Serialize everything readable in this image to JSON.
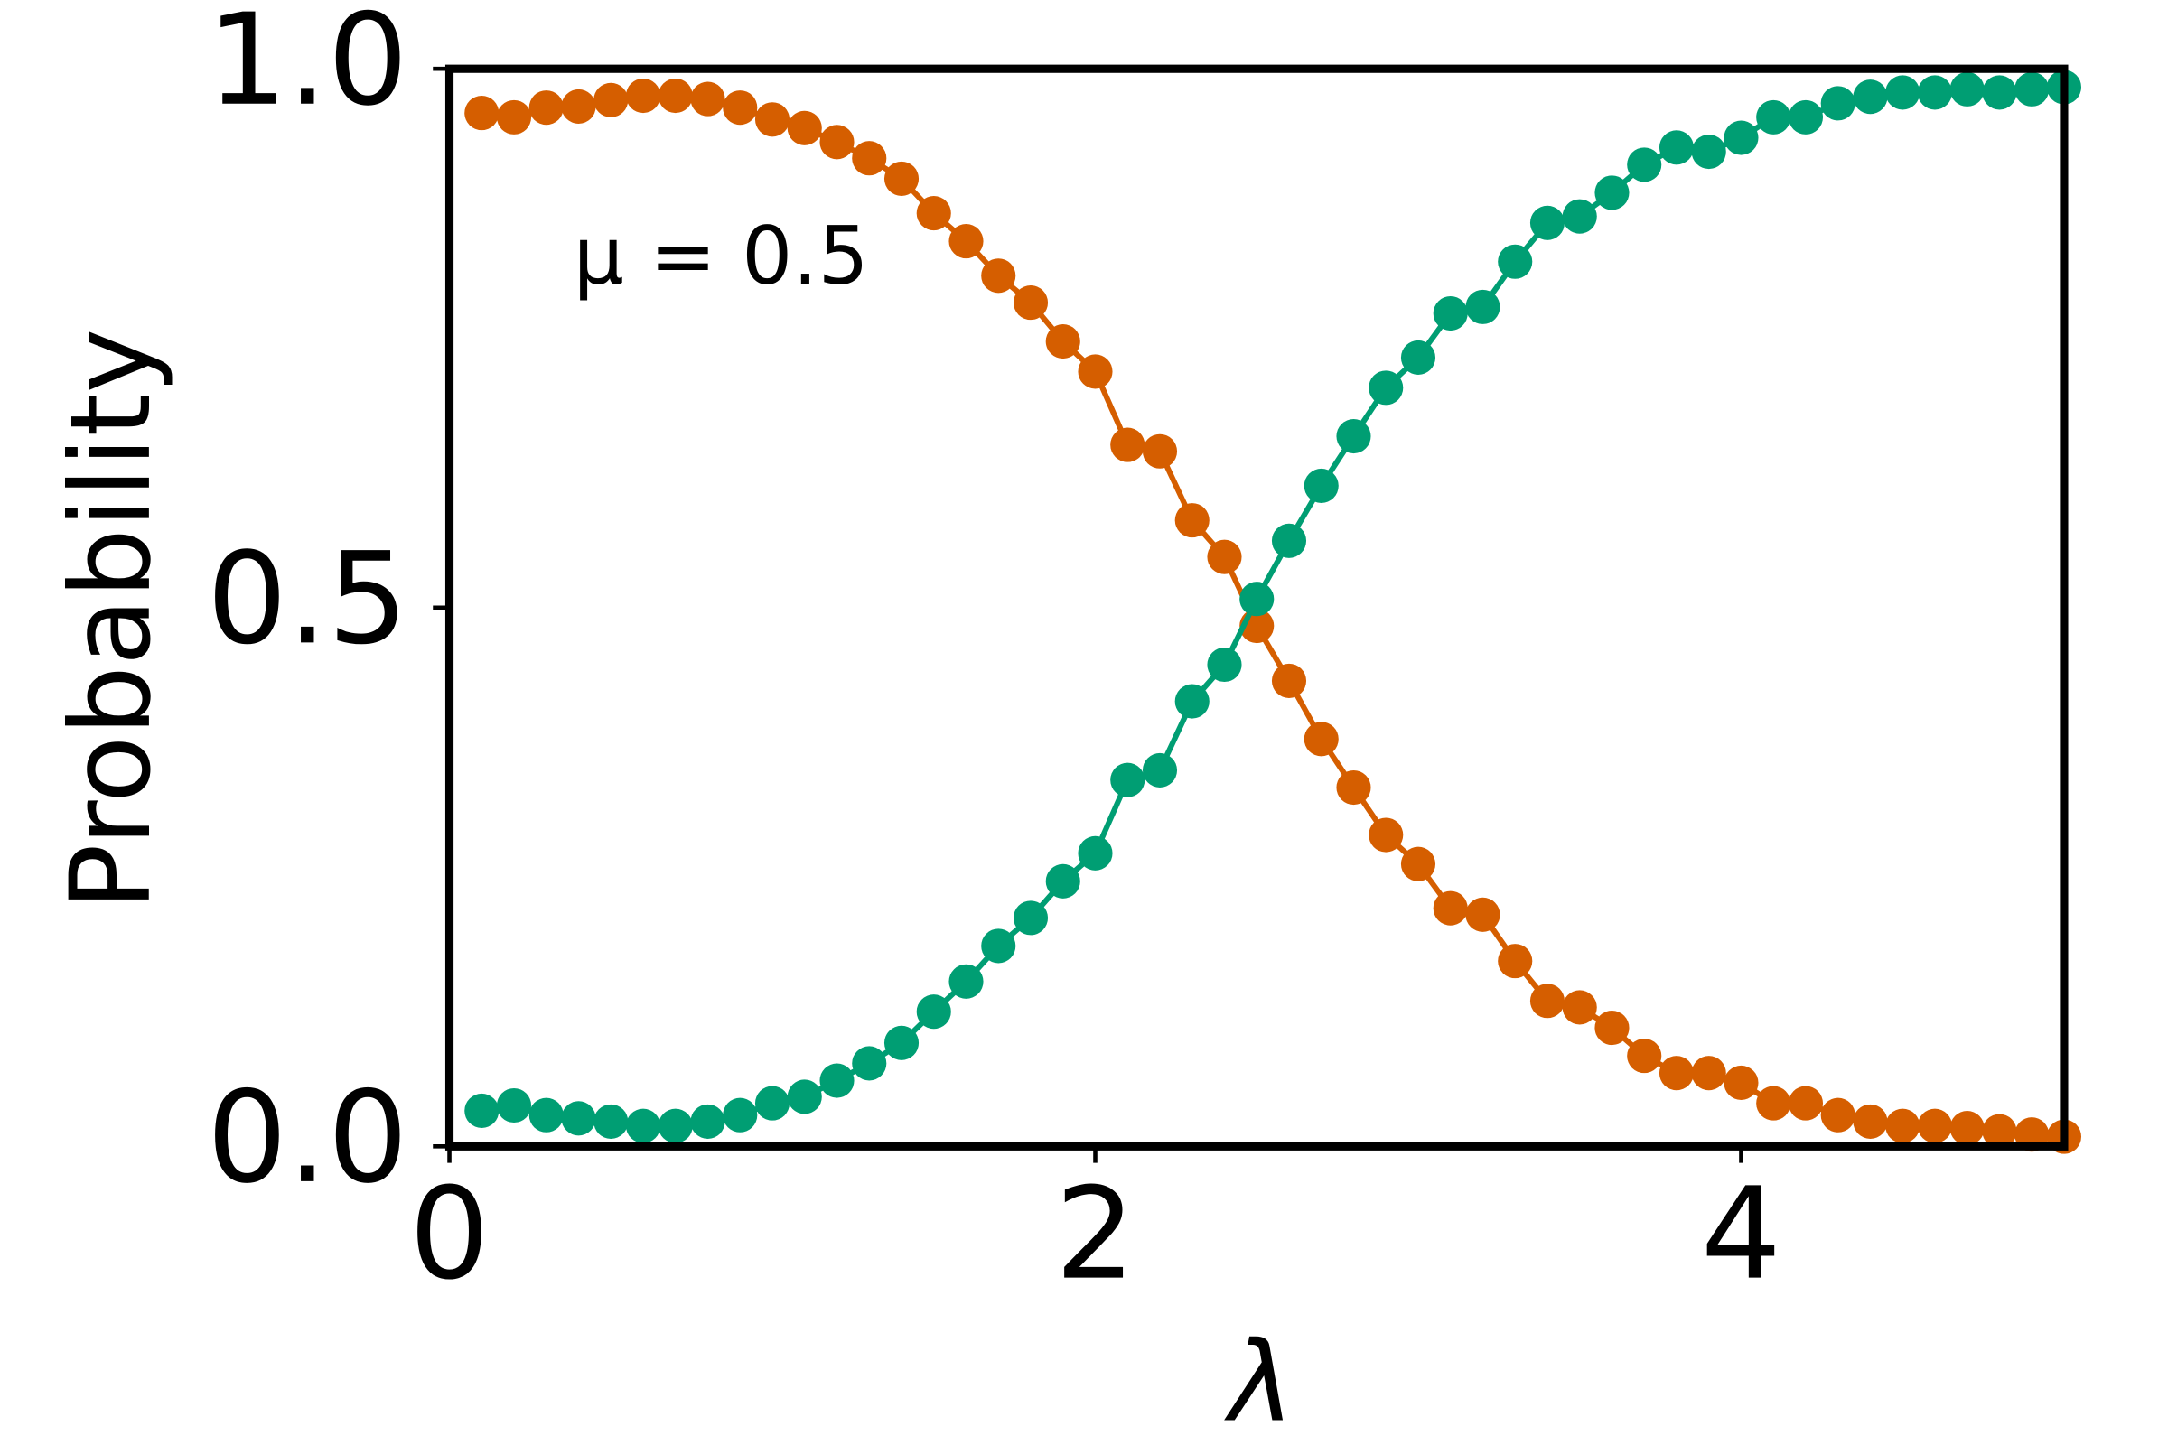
{
  "chart_data": {
    "type": "line",
    "xlabel": "λ",
    "ylabel": "Probability",
    "annotation": "μ = 0.5",
    "x": [
      0.1,
      0.2,
      0.3,
      0.4,
      0.5,
      0.6,
      0.7,
      0.8,
      0.9,
      1.0,
      1.1,
      1.2,
      1.3,
      1.4,
      1.5,
      1.6,
      1.7,
      1.8,
      1.9,
      2.0,
      2.1,
      2.2,
      2.3,
      2.4,
      2.5,
      2.6,
      2.7,
      2.8,
      2.9,
      3.0,
      3.1,
      3.2,
      3.3,
      3.4,
      3.5,
      3.6,
      3.7,
      3.8,
      3.9,
      4.0,
      4.1,
      4.2,
      4.3,
      4.4,
      4.5,
      4.6,
      4.7,
      4.8,
      4.9,
      5.0
    ],
    "series": [
      {
        "color": "#d55e00",
        "values": [
          0.959,
          0.955,
          0.964,
          0.965,
          0.971,
          0.975,
          0.975,
          0.972,
          0.964,
          0.953,
          0.945,
          0.932,
          0.917,
          0.898,
          0.866,
          0.84,
          0.808,
          0.783,
          0.747,
          0.719,
          0.651,
          0.645,
          0.581,
          0.547,
          0.483,
          0.432,
          0.378,
          0.333,
          0.289,
          0.262,
          0.221,
          0.215,
          0.172,
          0.135,
          0.129,
          0.11,
          0.084,
          0.068,
          0.068,
          0.059,
          0.04,
          0.04,
          0.029,
          0.023,
          0.019,
          0.019,
          0.017,
          0.014,
          0.011,
          0.009
        ]
      },
      {
        "color": "#009e73",
        "values": [
          0.033,
          0.038,
          0.029,
          0.026,
          0.023,
          0.019,
          0.019,
          0.023,
          0.029,
          0.04,
          0.046,
          0.061,
          0.077,
          0.096,
          0.125,
          0.153,
          0.186,
          0.212,
          0.246,
          0.272,
          0.34,
          0.349,
          0.413,
          0.447,
          0.508,
          0.562,
          0.613,
          0.659,
          0.704,
          0.732,
          0.773,
          0.779,
          0.821,
          0.857,
          0.863,
          0.885,
          0.911,
          0.927,
          0.923,
          0.936,
          0.955,
          0.955,
          0.968,
          0.974,
          0.978,
          0.978,
          0.981,
          0.978,
          0.981,
          0.983
        ]
      }
    ],
    "xlim": [
      0,
      5
    ],
    "ylim": [
      0,
      1
    ],
    "xticks": [
      0,
      2,
      4
    ],
    "yticks": [
      {
        "value": 0,
        "label": "0.0"
      },
      {
        "value": 0.5,
        "label": "0.5"
      },
      {
        "value": 1,
        "label": "1.0"
      }
    ],
    "grid": false
  }
}
